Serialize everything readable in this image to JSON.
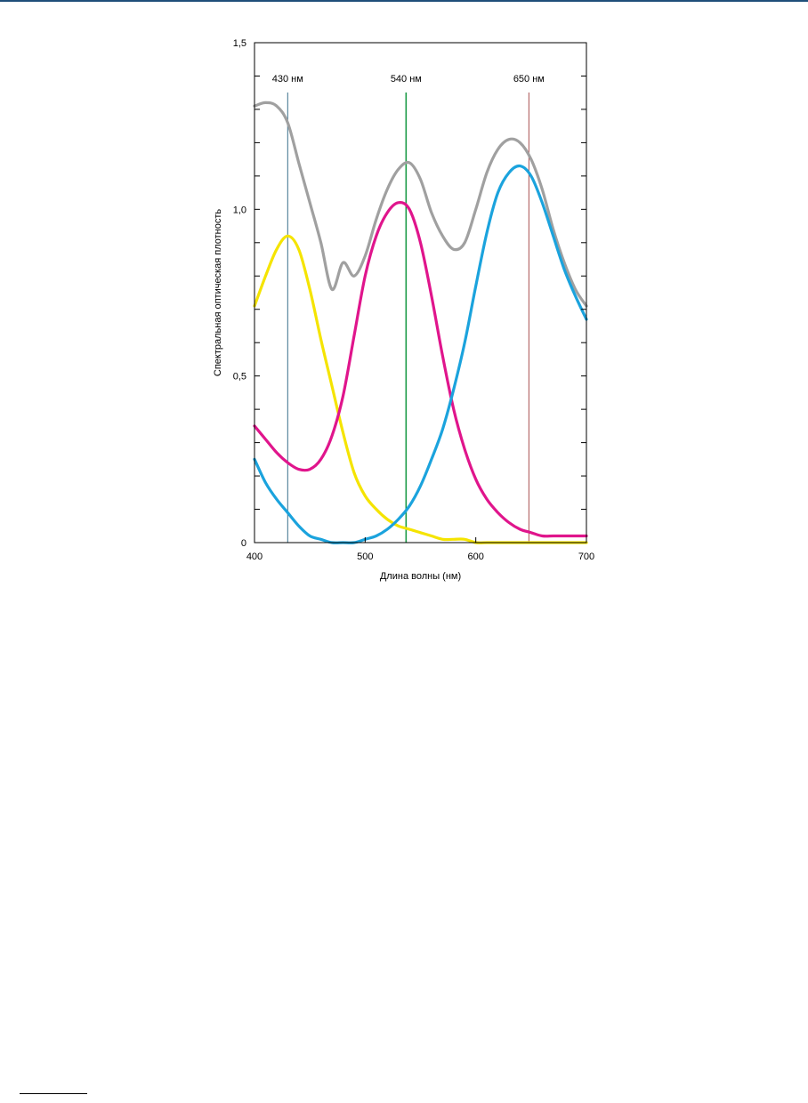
{
  "chart_data": {
    "type": "line",
    "xlabel": "Длина волны (нм)",
    "ylabel": "Спектральная оптическая плотность",
    "xlim": [
      400,
      700
    ],
    "ylim": [
      0,
      1.5
    ],
    "x_ticks": [
      400,
      500,
      600,
      700
    ],
    "x_tick_labels": [
      "400",
      "500",
      "600",
      "700"
    ],
    "y_ticks": [
      0,
      0.5,
      1.0,
      1.5
    ],
    "y_tick_labels": [
      "0",
      "0,5",
      "1,0",
      "1,5"
    ],
    "y_minor_step": 0.1,
    "grid": false,
    "reference_lines": [
      {
        "x": 430,
        "label": "430 нм",
        "color": "#3a6f8a"
      },
      {
        "x": 537,
        "label": "540 нм",
        "color": "#1a9a45"
      },
      {
        "x": 648,
        "label": "650 нм",
        "color": "#a85050"
      }
    ],
    "series": [
      {
        "color": "#a0a0a0",
        "x": [
          400,
          410,
          420,
          430,
          440,
          450,
          460,
          470,
          480,
          490,
          500,
          510,
          520,
          530,
          540,
          550,
          560,
          570,
          580,
          590,
          600,
          610,
          620,
          630,
          640,
          650,
          660,
          670,
          680,
          690,
          700
        ],
        "y": [
          1.31,
          1.32,
          1.31,
          1.26,
          1.14,
          1.02,
          0.9,
          0.76,
          0.84,
          0.8,
          0.86,
          0.97,
          1.06,
          1.12,
          1.14,
          1.09,
          0.99,
          0.92,
          0.88,
          0.9,
          1.0,
          1.11,
          1.18,
          1.21,
          1.2,
          1.15,
          1.06,
          0.94,
          0.84,
          0.76,
          0.71
        ]
      },
      {
        "color": "#f5e400",
        "x": [
          400,
          410,
          420,
          430,
          440,
          450,
          460,
          470,
          480,
          490,
          500,
          510,
          520,
          530,
          540,
          550,
          560,
          570,
          580,
          590,
          600,
          610,
          620,
          630,
          640,
          650,
          660,
          670,
          680,
          690,
          700
        ],
        "y": [
          0.71,
          0.8,
          0.88,
          0.92,
          0.88,
          0.76,
          0.61,
          0.47,
          0.33,
          0.21,
          0.14,
          0.1,
          0.07,
          0.05,
          0.04,
          0.03,
          0.02,
          0.01,
          0.01,
          0.01,
          0.0,
          0.0,
          0.0,
          0.0,
          0.0,
          0.0,
          0.0,
          0.0,
          0.0,
          0.0,
          0.0
        ]
      },
      {
        "color": "#e0158c",
        "x": [
          400,
          410,
          420,
          430,
          440,
          450,
          460,
          470,
          480,
          490,
          500,
          510,
          520,
          530,
          540,
          550,
          560,
          570,
          580,
          590,
          600,
          610,
          620,
          630,
          640,
          650,
          660,
          670,
          680,
          690,
          700
        ],
        "y": [
          0.35,
          0.31,
          0.27,
          0.24,
          0.22,
          0.22,
          0.25,
          0.32,
          0.44,
          0.62,
          0.8,
          0.92,
          0.99,
          1.02,
          1.0,
          0.9,
          0.74,
          0.56,
          0.4,
          0.28,
          0.19,
          0.13,
          0.09,
          0.06,
          0.04,
          0.03,
          0.02,
          0.02,
          0.02,
          0.02,
          0.02
        ]
      },
      {
        "color": "#1ba3dd",
        "x": [
          400,
          410,
          420,
          430,
          440,
          450,
          460,
          470,
          480,
          490,
          500,
          510,
          520,
          530,
          540,
          550,
          560,
          570,
          580,
          590,
          600,
          610,
          620,
          630,
          640,
          650,
          660,
          670,
          680,
          690,
          700
        ],
        "y": [
          0.25,
          0.18,
          0.13,
          0.09,
          0.05,
          0.02,
          0.01,
          0.0,
          0.0,
          0.0,
          0.01,
          0.02,
          0.04,
          0.07,
          0.11,
          0.17,
          0.25,
          0.34,
          0.46,
          0.6,
          0.77,
          0.93,
          1.05,
          1.11,
          1.13,
          1.1,
          1.02,
          0.92,
          0.82,
          0.74,
          0.67
        ]
      }
    ]
  }
}
